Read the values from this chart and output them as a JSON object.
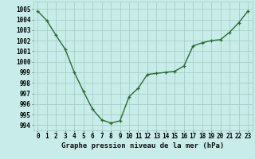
{
  "x": [
    0,
    1,
    2,
    3,
    4,
    5,
    6,
    7,
    8,
    9,
    10,
    11,
    12,
    13,
    14,
    15,
    16,
    17,
    18,
    19,
    20,
    21,
    22,
    23
  ],
  "y": [
    1004.8,
    1003.9,
    1002.5,
    1001.2,
    999.0,
    997.2,
    995.5,
    994.5,
    994.2,
    994.4,
    996.7,
    997.5,
    998.8,
    998.9,
    999.0,
    999.1,
    999.6,
    1001.5,
    1001.8,
    1002.0,
    1002.1,
    1002.8,
    1003.7,
    1004.8
  ],
  "line_color": "#2d6a2d",
  "marker": "+",
  "bg_color": "#c8ecea",
  "grid_color": "#a0ccbb",
  "xlabel": "Graphe pression niveau de la mer (hPa)",
  "xlabel_fontsize": 6.5,
  "ylabel_ticks": [
    994,
    995,
    996,
    997,
    998,
    999,
    1000,
    1001,
    1002,
    1003,
    1004,
    1005
  ],
  "xlim": [
    -0.5,
    23.5
  ],
  "ylim": [
    993.5,
    1005.7
  ],
  "tick_fontsize": 5.5,
  "line_width": 1.0,
  "marker_size": 3.5,
  "marker_ew": 0.9
}
